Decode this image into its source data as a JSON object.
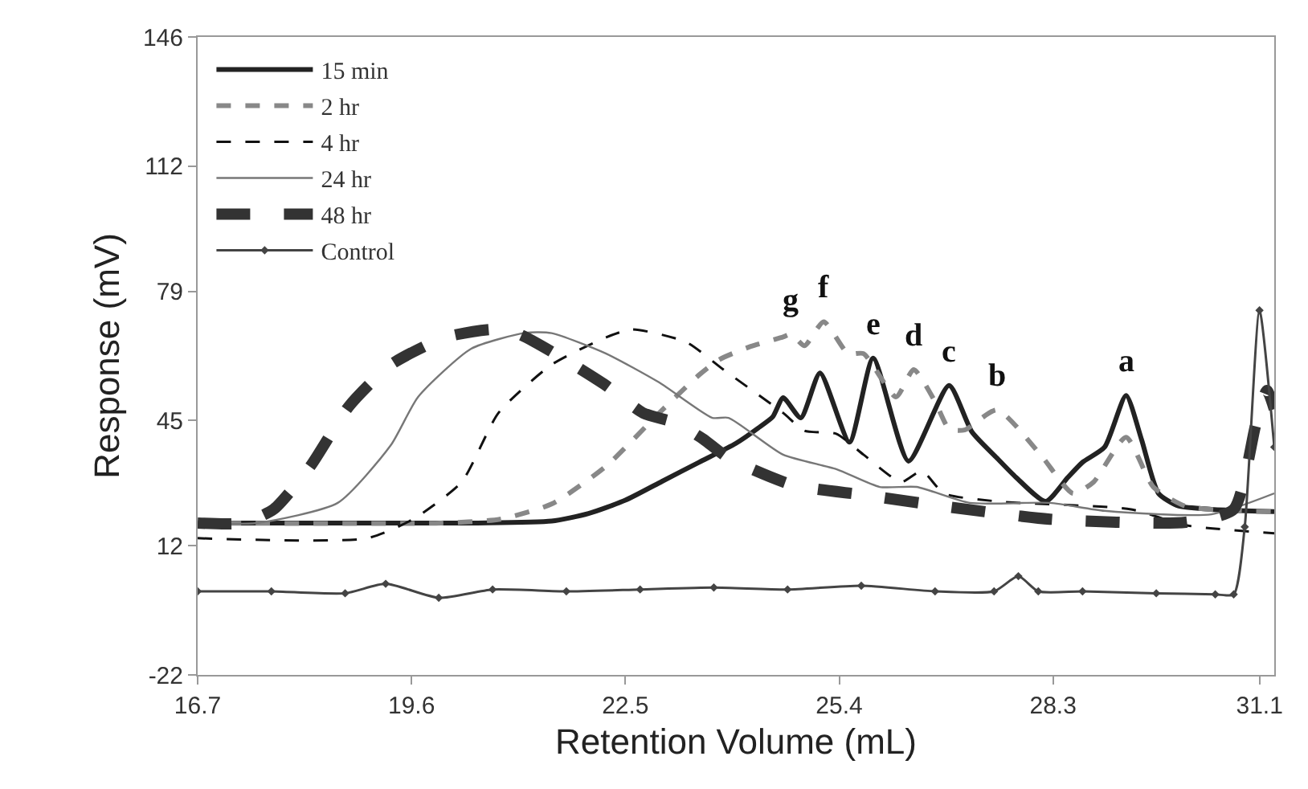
{
  "chart_data": {
    "type": "line",
    "xlabel": "Retention Volume (mL)",
    "ylabel": "Response (mV)",
    "xlim": [
      16.7,
      31.3
    ],
    "xticks": [
      16.7,
      19.6,
      22.5,
      25.4,
      28.3,
      31.1
    ],
    "ylim": [
      -22,
      146
    ],
    "yticks": [
      -22,
      12,
      45,
      79,
      112,
      146
    ],
    "grid": false,
    "legend": "top left",
    "series": [
      {
        "name": "15 min",
        "color": "#222222",
        "line_style": "solid",
        "marker": "none",
        "x": [
          16.7,
          20.5,
          21.5,
          22.0,
          22.5,
          23.0,
          23.5,
          24.0,
          24.3,
          24.5,
          24.64,
          24.88,
          25.14,
          25.54,
          25.86,
          26.34,
          26.89,
          27.2,
          27.54,
          27.8,
          28.2,
          28.5,
          28.7,
          29.0,
          29.29,
          29.5,
          29.73,
          30.0,
          30.45,
          31.3
        ],
        "values": [
          18,
          18,
          18.5,
          20.5,
          24,
          29,
          34,
          39,
          43,
          46,
          51,
          45.7,
          57.5,
          39.3,
          61.4,
          34.3,
          54.2,
          42,
          35.1,
          30,
          23.7,
          30,
          34,
          38,
          51.6,
          40,
          25.8,
          22.5,
          21.6,
          21
        ]
      },
      {
        "name": "2 hr",
        "color": "#888888",
        "line_style": "dashed",
        "marker": "none",
        "x": [
          16.7,
          20.0,
          20.8,
          21.5,
          22.24,
          22.96,
          23.5,
          23.77,
          24.2,
          24.64,
          24.75,
          24.93,
          25.19,
          25.52,
          25.73,
          26.17,
          26.41,
          26.7,
          26.89,
          27.1,
          27.54,
          28.13,
          28.57,
          28.85,
          29.29,
          29.66,
          30.1,
          30.82,
          31.3
        ],
        "values": [
          18,
          18,
          19,
          23,
          33,
          47,
          57,
          61,
          64.5,
          67,
          67.7,
          64.7,
          71,
          62.6,
          62.6,
          51.2,
          58.4,
          50,
          42.8,
          42.5,
          47.8,
          36,
          25.8,
          28.8,
          40.6,
          27.5,
          22.4,
          21.2,
          21
        ]
      },
      {
        "name": "4 hr",
        "color": "#111111",
        "line_style": "dashed",
        "marker": "none",
        "x": [
          16.7,
          19.0,
          19.62,
          20.28,
          20.78,
          21.5,
          22.24,
          22.59,
          23.33,
          23.83,
          24.64,
          24.93,
          25.36,
          25.73,
          26.24,
          26.52,
          26.82,
          27.54,
          29.36,
          30.1,
          31.3
        ],
        "values": [
          14,
          14,
          19,
          28.8,
          47,
          59.7,
          66.9,
          69,
          65.6,
          58.4,
          47,
          42.3,
          41.5,
          36,
          28.8,
          31.7,
          25.8,
          23.7,
          21.6,
          17.4,
          15.3
        ]
      },
      {
        "name": "24 hr",
        "color": "#777777",
        "line_style": "solid",
        "marker": "none",
        "x": [
          16.7,
          17.5,
          18.6,
          19.32,
          19.69,
          20.41,
          21.15,
          21.5,
          22.24,
          22.96,
          23.68,
          23.9,
          24.64,
          25.36,
          25.95,
          26.45,
          27.17,
          28.26,
          29.0,
          30.45,
          31.3
        ],
        "values": [
          18,
          18,
          23.3,
          38.5,
          51.2,
          63.9,
          68.1,
          68,
          62.6,
          55,
          45.7,
          45.7,
          36,
          32.2,
          27.5,
          27.5,
          23.3,
          23.3,
          21.2,
          20.3,
          25.8
        ]
      },
      {
        "name": "48 hr",
        "color": "#333333",
        "line_style": "dashed",
        "marker": "none",
        "x": [
          16.7,
          17.3,
          17.73,
          18.23,
          18.75,
          19.32,
          20.06,
          20.71,
          21.06,
          21.65,
          22.24,
          22.74,
          23.18,
          23.55,
          23.9,
          24.77,
          25.73,
          26.82,
          28.26,
          30.1,
          30.75,
          31.05,
          31.2,
          31.3
        ],
        "values": [
          18,
          18,
          21.6,
          33,
          48.7,
          59.7,
          66.9,
          69,
          67.7,
          61.4,
          54.2,
          47,
          44.4,
          40.2,
          35.1,
          28,
          25.4,
          22.4,
          19,
          18.2,
          21.6,
          44,
          52.9,
          48
        ]
      },
      {
        "name": "Control",
        "color": "#444444",
        "line_style": "solid",
        "marker": "diamond",
        "x": [
          16.7,
          17.7,
          18.7,
          19.25,
          19.97,
          20.7,
          21.7,
          22.7,
          23.7,
          24.7,
          25.7,
          26.7,
          27.5,
          27.83,
          28.1,
          28.7,
          29.7,
          30.5,
          30.75,
          30.9,
          31.1,
          31.3
        ],
        "values": [
          0,
          0,
          -0.5,
          2,
          -1.7,
          0.5,
          0,
          0.5,
          1,
          0.5,
          1.5,
          0,
          0,
          4,
          0,
          0,
          -0.5,
          -0.8,
          -0.8,
          17,
          74,
          38
        ]
      }
    ],
    "annotations": [
      {
        "text": "g",
        "x": 24.75,
        "y": 67.7
      },
      {
        "text": "f",
        "x": 25.19,
        "y": 71
      },
      {
        "text": "e",
        "x": 25.86,
        "y": 61.4
      },
      {
        "text": "d",
        "x": 26.41,
        "y": 58.4
      },
      {
        "text": "c",
        "x": 26.89,
        "y": 54.2
      },
      {
        "text": "b",
        "x": 27.54,
        "y": 47.8
      },
      {
        "text": "a",
        "x": 29.29,
        "y": 51.6
      }
    ]
  }
}
